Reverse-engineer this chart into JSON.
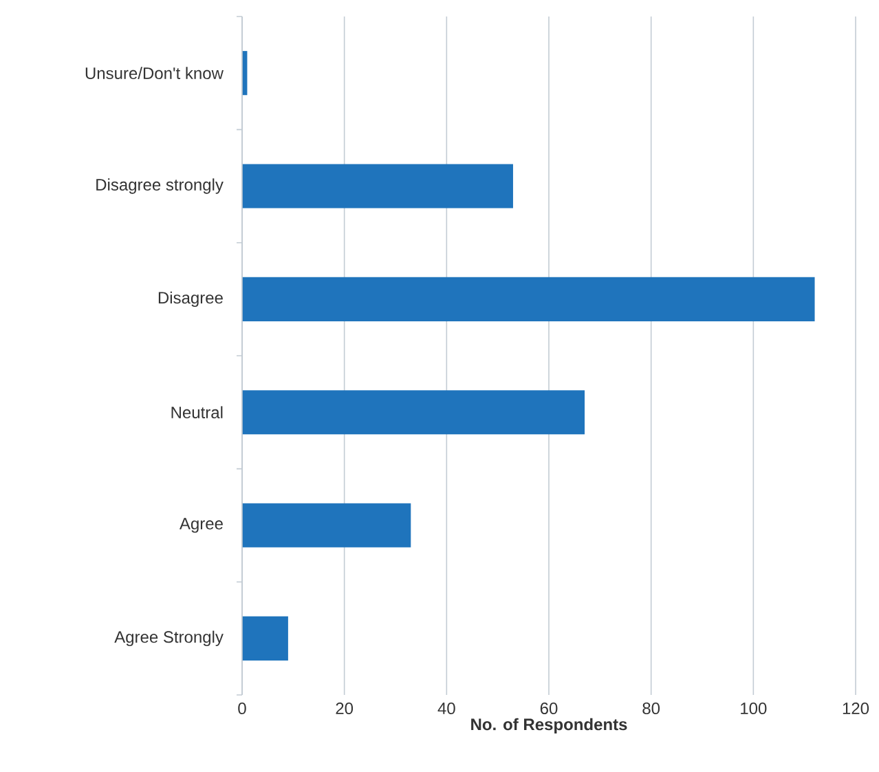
{
  "chart_data": {
    "type": "bar",
    "orientation": "horizontal",
    "xlabel": "No. of Respondents",
    "categories": [
      "Unsure/Don't know",
      "Disagree strongly",
      "Disagree",
      "Neutral",
      "Agree",
      "Agree Strongly"
    ],
    "values": [
      1,
      53,
      112,
      67,
      33,
      9
    ],
    "color": "#1f74bc",
    "xlim": [
      0,
      120
    ],
    "xticks": [
      0,
      20,
      40,
      60,
      80,
      100,
      120
    ],
    "grid": "x"
  }
}
